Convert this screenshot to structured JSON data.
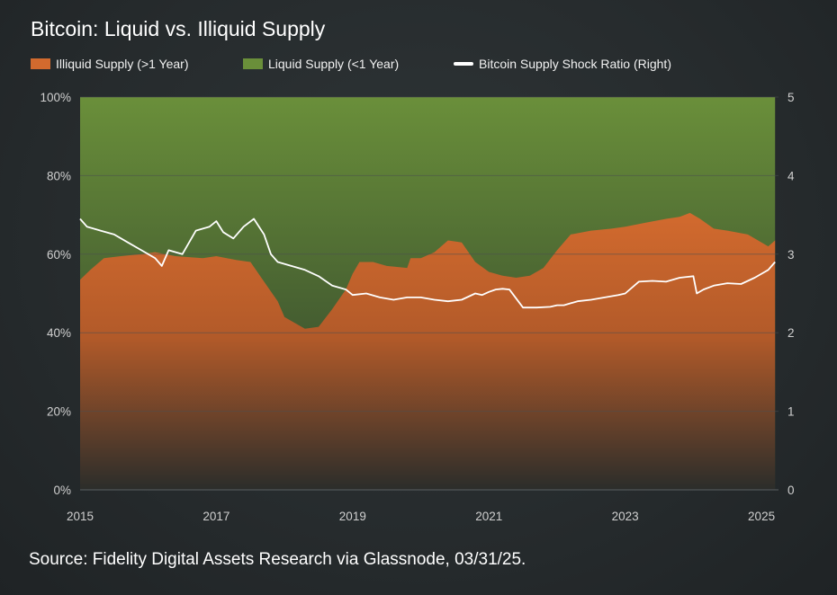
{
  "chart_data": {
    "type": "area",
    "title": "Bitcoin: Liquid vs. Illiquid Supply",
    "source": "Source: Fidelity Digital Assets Research via Glassnode, 03/31/25.",
    "legend_placement": "top-left",
    "grid": true,
    "xlim": [
      2015,
      2025.25
    ],
    "x_ticks": [
      "2015",
      "2017",
      "2019",
      "2021",
      "2023",
      "2025"
    ],
    "x_tick_values": [
      2015,
      2017,
      2019,
      2021,
      2023,
      2025
    ],
    "y_left_ticks": [
      "0%",
      "20%",
      "40%",
      "60%",
      "80%",
      "100%"
    ],
    "y_left_lim": [
      0,
      100
    ],
    "y_right_ticks": [
      "0",
      "1",
      "2",
      "3",
      "4",
      "5"
    ],
    "y_right_lim": [
      0,
      5
    ],
    "colors": {
      "illiquid_top": "#d26a2e",
      "illiquid_bottom": "#2b2d2a",
      "liquid_top": "#6a8f3a",
      "liquid_bottom": "#2a3a2a",
      "ratio_line": "#ffffff",
      "grid": "#4a4f51"
    },
    "series": [
      {
        "name": "Illiquid Supply (>1 Year)",
        "kind": "stacked-area",
        "axis": "left",
        "x": [
          2015.0,
          2015.15,
          2015.35,
          2015.6,
          2015.9,
          2016.1,
          2016.4,
          2016.8,
          2017.0,
          2017.3,
          2017.5,
          2017.7,
          2017.9,
          2018.0,
          2018.3,
          2018.5,
          2018.7,
          2018.9,
          2019.0,
          2019.1,
          2019.3,
          2019.5,
          2019.8,
          2019.85,
          2020.0,
          2020.2,
          2020.4,
          2020.6,
          2020.8,
          2021.0,
          2021.2,
          2021.4,
          2021.6,
          2021.8,
          2022.0,
          2022.2,
          2022.5,
          2022.8,
          2023.0,
          2023.3,
          2023.6,
          2023.8,
          2023.95,
          2024.1,
          2024.3,
          2024.5,
          2024.8,
          2025.0,
          2025.1,
          2025.2
        ],
        "values": [
          53.5,
          56,
          59,
          59.5,
          60,
          60.5,
          59.5,
          59,
          59.5,
          58.5,
          58,
          53,
          48,
          44,
          41,
          41.5,
          46,
          51,
          55,
          58,
          58,
          57,
          56.5,
          59,
          59,
          60.5,
          63.5,
          63,
          58,
          55.5,
          54.5,
          54,
          54.5,
          56.5,
          61,
          65,
          66,
          66.5,
          67,
          68,
          69,
          69.5,
          70.5,
          69,
          66.5,
          66,
          65,
          63,
          62,
          63.5
        ]
      },
      {
        "name": "Liquid Supply (<1 Year)",
        "kind": "stacked-area",
        "axis": "left",
        "note_values": "remainder to 100%"
      },
      {
        "name": "Bitcoin Supply Shock Ratio (Right)",
        "kind": "line",
        "axis": "right",
        "x": [
          2015.0,
          2015.1,
          2015.3,
          2015.5,
          2015.7,
          2015.9,
          2016.1,
          2016.2,
          2016.3,
          2016.5,
          2016.7,
          2016.9,
          2017.0,
          2017.1,
          2017.25,
          2017.4,
          2017.55,
          2017.7,
          2017.8,
          2017.9,
          2018.1,
          2018.3,
          2018.5,
          2018.7,
          2018.9,
          2019.0,
          2019.2,
          2019.4,
          2019.6,
          2019.8,
          2020.0,
          2020.2,
          2020.4,
          2020.6,
          2020.8,
          2020.9,
          2021.0,
          2021.1,
          2021.2,
          2021.3,
          2021.5,
          2021.7,
          2021.9,
          2022.0,
          2022.1,
          2022.3,
          2022.5,
          2022.7,
          2022.9,
          2023.0,
          2023.2,
          2023.4,
          2023.6,
          2023.8,
          2024.0,
          2024.05,
          2024.15,
          2024.3,
          2024.5,
          2024.7,
          2024.9,
          2025.0,
          2025.1,
          2025.2
        ],
        "values": [
          3.45,
          3.35,
          3.3,
          3.25,
          3.15,
          3.05,
          2.95,
          2.85,
          3.05,
          3.0,
          3.3,
          3.35,
          3.42,
          3.28,
          3.2,
          3.35,
          3.45,
          3.25,
          3.0,
          2.9,
          2.85,
          2.8,
          2.72,
          2.6,
          2.55,
          2.48,
          2.5,
          2.45,
          2.42,
          2.45,
          2.45,
          2.42,
          2.4,
          2.42,
          2.5,
          2.48,
          2.52,
          2.55,
          2.56,
          2.55,
          2.32,
          2.32,
          2.33,
          2.35,
          2.35,
          2.4,
          2.42,
          2.45,
          2.48,
          2.5,
          2.65,
          2.66,
          2.65,
          2.7,
          2.72,
          2.5,
          2.55,
          2.6,
          2.63,
          2.62,
          2.7,
          2.75,
          2.8,
          2.9
        ]
      }
    ]
  }
}
